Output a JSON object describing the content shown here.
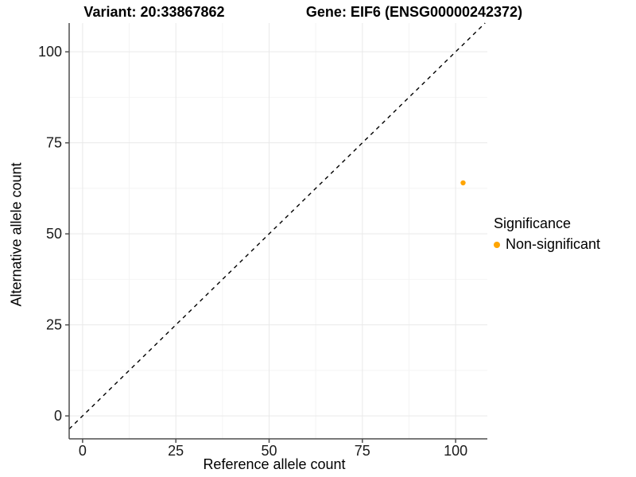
{
  "titles": {
    "variant": "Variant: 20:33867862",
    "gene": "Gene: EIF6 (ENSG00000242372)"
  },
  "axes": {
    "x_label": "Reference allele count",
    "y_label": "Alternative allele count"
  },
  "legend": {
    "title": "Significance",
    "items": [
      {
        "label": "Non-significant",
        "color": "#FFA500"
      }
    ]
  },
  "chart_data": {
    "type": "scatter",
    "title": "Variant: 20:33867862 / Gene: EIF6 (ENSG00000242372)",
    "xlabel": "Reference allele count",
    "ylabel": "Alternative allele count",
    "x_ticks": [
      0,
      25,
      50,
      75,
      100
    ],
    "y_ticks": [
      0,
      25,
      50,
      75,
      100
    ],
    "xlim": [
      -3.6,
      108.5
    ],
    "ylim": [
      -6.3,
      107.9
    ],
    "minor_step": 12.5,
    "grid": true,
    "legend_position": "right",
    "series": [
      {
        "name": "Non-significant",
        "color": "#FFA500",
        "points": [
          {
            "x": 102,
            "y": 64
          }
        ]
      }
    ],
    "reference_line": {
      "type": "identity",
      "style": "dashed",
      "color": "#000000"
    },
    "colors": {
      "grid_major": "#E9E9E9",
      "grid_minor": "#F4F4F4",
      "axis_line": "#4D4D4D",
      "tick_label": "#1A1A1A"
    }
  }
}
